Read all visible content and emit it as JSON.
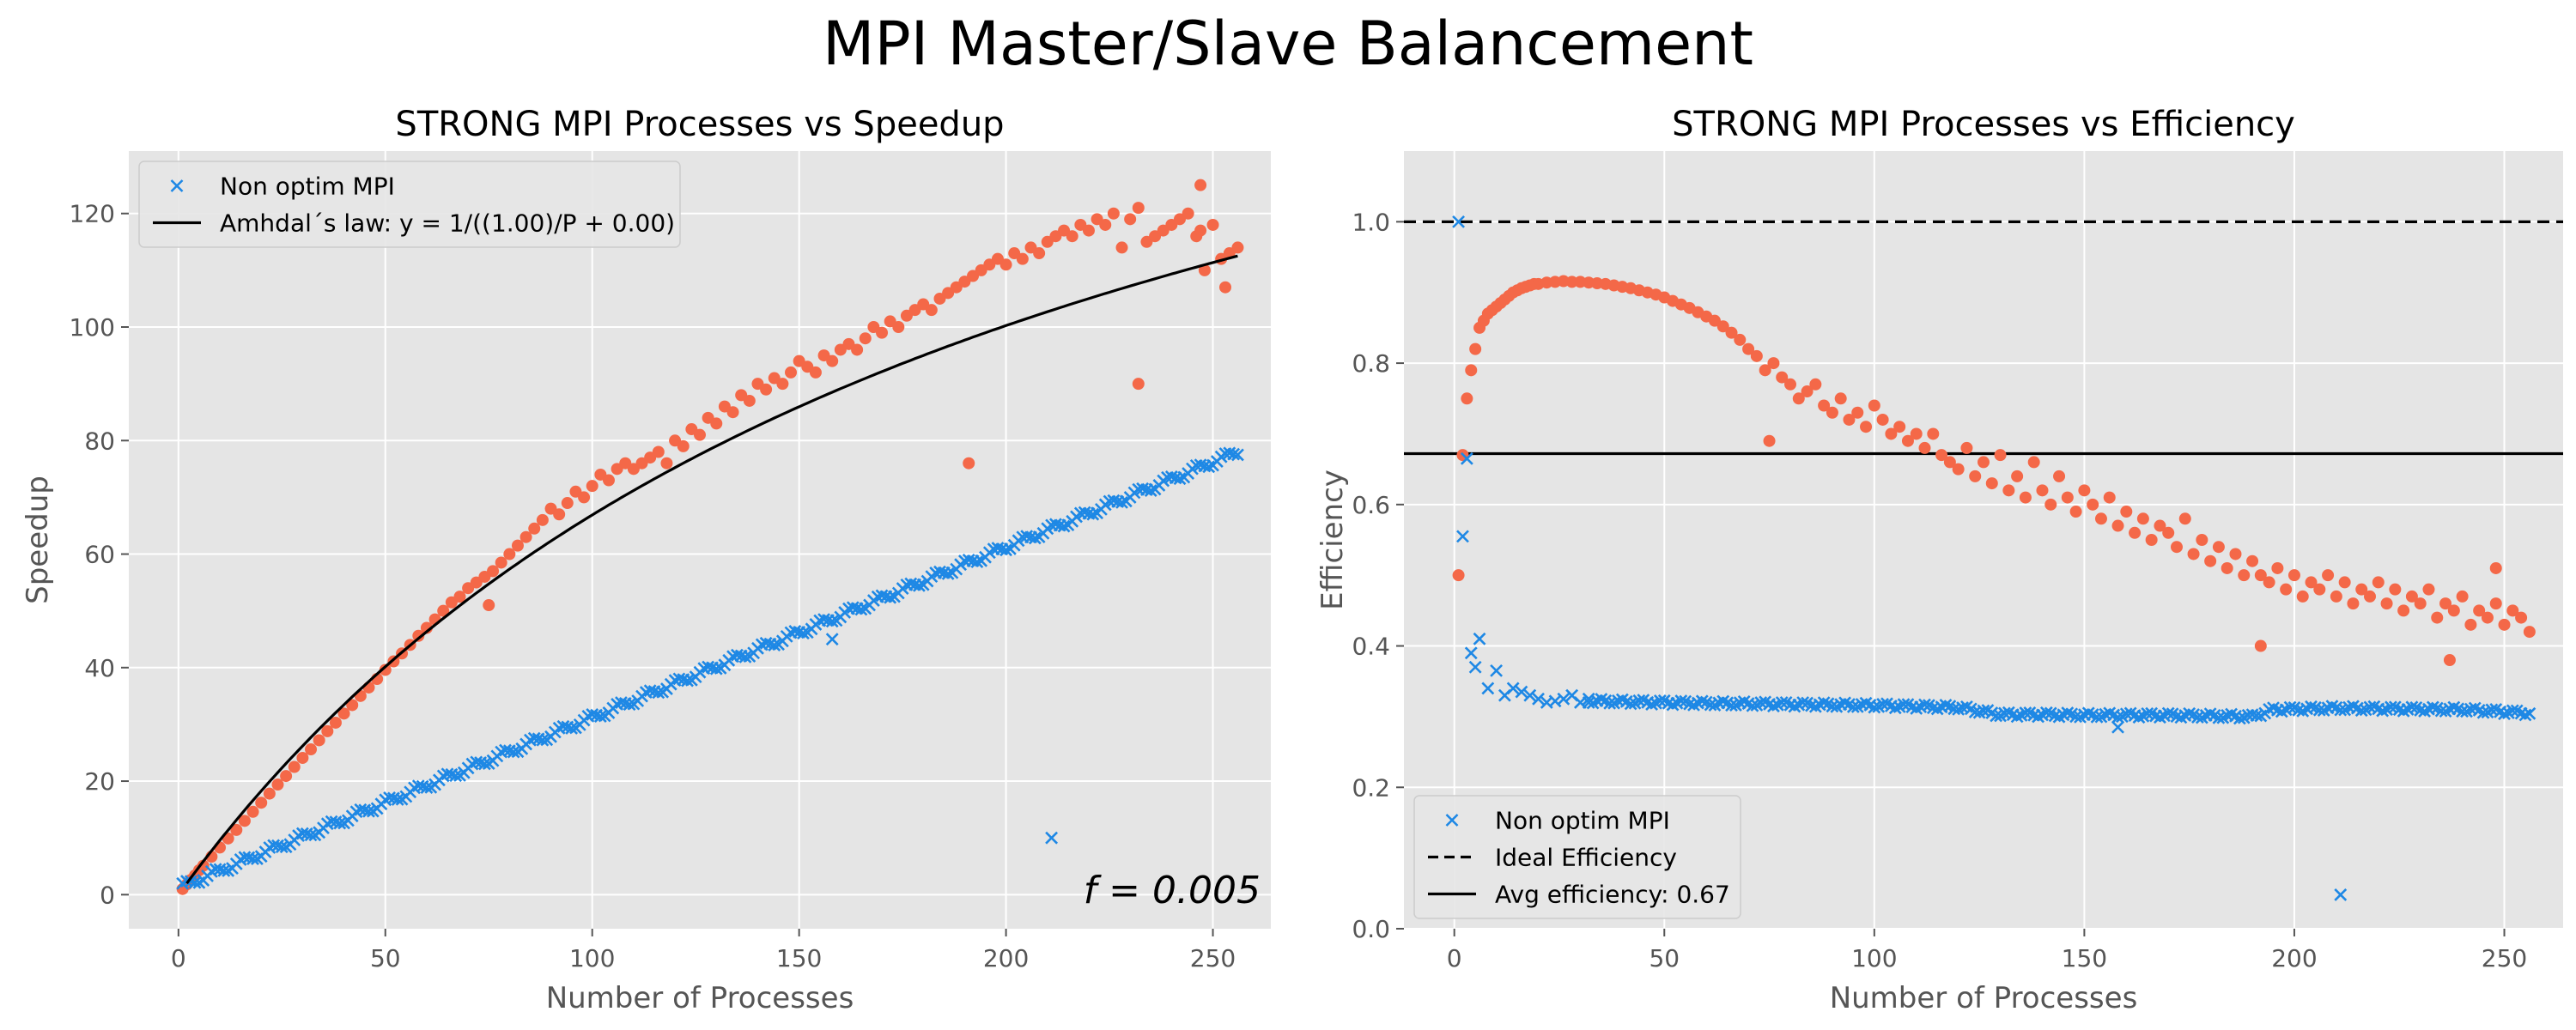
{
  "figure": {
    "title": "MPI Master/Slave Balancement"
  },
  "colors": {
    "axes_bg": "#e5e5e5",
    "grid": "#ffffff",
    "optim": "#f46848",
    "non_optim": "#1e88e5",
    "line": "#000000"
  },
  "chart_data": [
    {
      "type": "scatter",
      "title": "STRONG MPI Processes vs Speedup",
      "xlabel": "Number of Processes",
      "ylabel": "Speedup",
      "xlim": [
        -12,
        264
      ],
      "ylim": [
        -6,
        131
      ],
      "xticks": [
        0,
        50,
        100,
        150,
        200,
        250
      ],
      "yticks": [
        0,
        20,
        40,
        60,
        80,
        100,
        120
      ],
      "grid": true,
      "legend_position": "top-left",
      "legend": [
        {
          "label": "Non optim MPI",
          "marker": "x",
          "color": "#1e88e5"
        },
        {
          "label": "Amhdal´s law: y = 1/((1.00)/P + 0.00)",
          "marker": "line-solid",
          "color": "#000000"
        }
      ],
      "annotation": {
        "text": "f = 0.005"
      },
      "series": [
        {
          "marker": "dot",
          "color": "#f46848",
          "x": [
            1,
            2,
            3,
            4,
            5,
            6,
            8,
            10,
            12,
            14,
            16,
            18,
            20,
            22,
            24,
            26,
            28,
            30,
            32,
            34,
            36,
            38,
            40,
            42,
            44,
            46,
            48,
            50,
            52,
            54,
            56,
            58,
            60,
            62,
            64,
            66,
            68,
            70,
            72,
            74,
            75,
            76,
            78,
            80,
            82,
            84,
            86,
            88,
            90,
            92,
            94,
            96,
            98,
            100,
            102,
            104,
            106,
            108,
            110,
            112,
            114,
            116,
            118,
            120,
            122,
            124,
            126,
            128,
            130,
            132,
            134,
            136,
            138,
            140,
            142,
            144,
            146,
            148,
            150,
            152,
            154,
            156,
            158,
            160,
            162,
            164,
            166,
            168,
            170,
            172,
            174,
            176,
            178,
            180,
            182,
            184,
            186,
            188,
            190,
            191,
            192,
            194,
            196,
            198,
            200,
            202,
            204,
            206,
            208,
            210,
            212,
            214,
            216,
            218,
            220,
            222,
            224,
            226,
            228,
            230,
            232,
            234,
            236,
            238,
            240,
            242,
            244,
            246,
            247,
            248,
            250,
            252,
            254,
            256
          ],
          "y": [
            1,
            1.8,
            2.6,
            3.4,
            4.3,
            5.1,
            6.7,
            8.3,
            9.9,
            11.4,
            13,
            14.6,
            16.2,
            17.8,
            19.4,
            20.9,
            22.5,
            24.1,
            25.6,
            27.2,
            28.8,
            30.3,
            31.9,
            33.4,
            35,
            36.5,
            38,
            39.6,
            41.1,
            42.5,
            44,
            45.6,
            47,
            48.5,
            50,
            51.5,
            52.5,
            54,
            55,
            56,
            51,
            57,
            58.5,
            60,
            61.5,
            63,
            64.5,
            66,
            68,
            67,
            69,
            71,
            70,
            72,
            74,
            73,
            75,
            76,
            75,
            76,
            77,
            78,
            76,
            80,
            79,
            82,
            81,
            84,
            83,
            86,
            85,
            88,
            87,
            90,
            89,
            91,
            90,
            92,
            94,
            93,
            92,
            95,
            94,
            96,
            97,
            96,
            98,
            100,
            99,
            101,
            100,
            102,
            103,
            104,
            103,
            105,
            106,
            107,
            108,
            76,
            109,
            110,
            111,
            112,
            111,
            113,
            112,
            114,
            113,
            115,
            116,
            117,
            116,
            118,
            117,
            119,
            118,
            120,
            114,
            119,
            121,
            115,
            116,
            117,
            118,
            119,
            120,
            116,
            117,
            110,
            118,
            112,
            113,
            114
          ],
          "extra_points": [
            {
              "x": 232,
              "y": 90
            },
            {
              "x": 247,
              "y": 125
            },
            {
              "x": 253,
              "y": 107
            }
          ]
        },
        {
          "marker": "x",
          "color": "#1e88e5",
          "name": "Non optim MPI",
          "x_start": 1,
          "x_end": 256,
          "y_start": 1.5,
          "y_end": 78,
          "outliers": [
            {
              "x": 158,
              "y": 45
            },
            {
              "x": 211,
              "y": 10
            }
          ]
        },
        {
          "marker": "line",
          "color": "#000000",
          "name": "Amhdal´s law: y = 1/((1.00)/P + 0.00)",
          "formula": "S(P) = 1/(f + (1-f)/P), f = 0.005",
          "f": 0.005,
          "x_range": [
            2,
            256
          ]
        }
      ]
    },
    {
      "type": "scatter",
      "title": "STRONG MPI Processes vs Efficiency",
      "xlabel": "Number of Processes",
      "ylabel": "Efficiency",
      "xlim": [
        -12,
        264
      ],
      "ylim": [
        0.0,
        1.1
      ],
      "xticks": [
        0,
        50,
        100,
        150,
        200,
        250
      ],
      "yticks": [
        0.0,
        0.2,
        0.4,
        0.6,
        0.8,
        1.0
      ],
      "grid": true,
      "legend_position": "bottom-left",
      "legend": [
        {
          "label": "Non optim MPI",
          "marker": "x",
          "color": "#1e88e5"
        },
        {
          "label": "Ideal Efficiency",
          "marker": "line-dashed",
          "color": "#000000"
        },
        {
          "label": "Avg efficiency: 0.67",
          "marker": "line-solid",
          "color": "#000000"
        }
      ],
      "hlines": [
        {
          "y": 1.0,
          "style": "dashed"
        },
        {
          "y": 0.672,
          "style": "solid"
        }
      ],
      "series": [
        {
          "marker": "dot",
          "color": "#f46848",
          "x": [
            1,
            2,
            3,
            4,
            5,
            6,
            7,
            8,
            9,
            10,
            11,
            12,
            13,
            14,
            15,
            16,
            17,
            18,
            19,
            20,
            22,
            24,
            26,
            28,
            30,
            32,
            34,
            36,
            38,
            40,
            42,
            44,
            46,
            48,
            50,
            52,
            54,
            56,
            58,
            60,
            62,
            64,
            66,
            68,
            70,
            72,
            74,
            75,
            76,
            78,
            80,
            82,
            84,
            86,
            88,
            90,
            92,
            94,
            96,
            98,
            100,
            102,
            104,
            106,
            108,
            110,
            112,
            114,
            116,
            118,
            120,
            122,
            124,
            126,
            128,
            130,
            132,
            134,
            136,
            138,
            140,
            142,
            144,
            146,
            148,
            150,
            152,
            154,
            156,
            158,
            160,
            162,
            164,
            166,
            168,
            170,
            172,
            174,
            176,
            178,
            180,
            182,
            184,
            186,
            188,
            190,
            192,
            194,
            196,
            198,
            200,
            202,
            204,
            206,
            208,
            210,
            212,
            214,
            216,
            218,
            220,
            222,
            224,
            226,
            228,
            230,
            232,
            234,
            236,
            237,
            238,
            240,
            242,
            244,
            246,
            248,
            250,
            252,
            254,
            256
          ],
          "y": [
            0.5,
            0.67,
            0.75,
            0.79,
            0.82,
            0.85,
            0.86,
            0.87,
            0.875,
            0.88,
            0.885,
            0.89,
            0.895,
            0.9,
            0.903,
            0.906,
            0.908,
            0.91,
            0.912,
            0.912,
            0.914,
            0.915,
            0.916,
            0.915,
            0.915,
            0.914,
            0.913,
            0.912,
            0.91,
            0.908,
            0.906,
            0.903,
            0.9,
            0.897,
            0.893,
            0.888,
            0.883,
            0.878,
            0.872,
            0.866,
            0.86,
            0.852,
            0.843,
            0.833,
            0.82,
            0.81,
            0.79,
            0.69,
            0.8,
            0.78,
            0.77,
            0.75,
            0.76,
            0.77,
            0.74,
            0.73,
            0.75,
            0.72,
            0.73,
            0.71,
            0.74,
            0.72,
            0.7,
            0.71,
            0.69,
            0.7,
            0.68,
            0.7,
            0.67,
            0.66,
            0.65,
            0.68,
            0.64,
            0.66,
            0.63,
            0.67,
            0.62,
            0.64,
            0.61,
            0.66,
            0.62,
            0.6,
            0.64,
            0.61,
            0.59,
            0.62,
            0.6,
            0.58,
            0.61,
            0.57,
            0.59,
            0.56,
            0.58,
            0.55,
            0.57,
            0.56,
            0.54,
            0.58,
            0.53,
            0.55,
            0.52,
            0.54,
            0.51,
            0.53,
            0.5,
            0.52,
            0.5,
            0.49,
            0.51,
            0.48,
            0.5,
            0.47,
            0.49,
            0.48,
            0.5,
            0.47,
            0.49,
            0.46,
            0.48,
            0.47,
            0.49,
            0.46,
            0.48,
            0.45,
            0.47,
            0.46,
            0.48,
            0.44,
            0.46,
            0.38,
            0.45,
            0.47,
            0.43,
            0.45,
            0.44,
            0.46,
            0.43,
            0.45,
            0.44,
            0.42
          ],
          "extra_points": [
            {
              "x": 192,
              "y": 0.4
            },
            {
              "x": 248,
              "y": 0.51
            }
          ]
        },
        {
          "marker": "x",
          "color": "#1e88e5",
          "name": "Non optim MPI",
          "x": [
            1,
            2,
            3,
            4,
            5,
            6,
            8,
            10,
            12,
            14,
            16,
            18,
            20,
            22,
            24,
            26,
            28,
            30,
            32
          ],
          "y": [
            1.0,
            0.555,
            0.665,
            0.39,
            0.37,
            0.41,
            0.34,
            0.365,
            0.33,
            0.34,
            0.335,
            0.33,
            0.325,
            0.32,
            0.322,
            0.325,
            0.33,
            0.32,
            0.325
          ],
          "tail_start": 32,
          "tail_end": 256,
          "tail_profile": [
            [
              32,
              0.322
            ],
            [
              60,
              0.319
            ],
            [
              100,
              0.316
            ],
            [
              120,
              0.313
            ],
            [
              130,
              0.303
            ],
            [
              140,
              0.303
            ],
            [
              150,
              0.302
            ],
            [
              170,
              0.302
            ],
            [
              190,
              0.3
            ],
            [
              195,
              0.31
            ],
            [
              210,
              0.312
            ],
            [
              240,
              0.31
            ],
            [
              256,
              0.305
            ]
          ],
          "outliers": [
            {
              "x": 158,
              "y": 0.285
            },
            {
              "x": 211,
              "y": 0.048
            }
          ]
        }
      ]
    }
  ]
}
